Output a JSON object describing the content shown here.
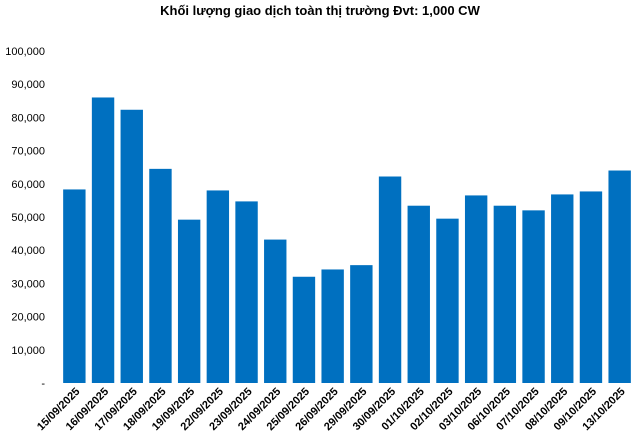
{
  "chart_data": {
    "type": "bar",
    "title": "Khối lượng giao dịch toàn thị trường Đvt: 1,000 CW",
    "xlabel": "",
    "ylabel": "",
    "ylim": [
      0,
      100000
    ],
    "y_ticks": [
      "-",
      "10,000",
      "20,000",
      "30,000",
      "40,000",
      "50,000",
      "60,000",
      "70,000",
      "80,000",
      "90,000",
      "100,000"
    ],
    "y_tick_values": [
      0,
      10000,
      20000,
      30000,
      40000,
      50000,
      60000,
      70000,
      80000,
      90000,
      100000
    ],
    "grid": false,
    "bar_color": "#0070C0",
    "categories": [
      "15/09/2025",
      "16/09/2025",
      "17/09/2025",
      "18/09/2025",
      "19/09/2025",
      "22/09/2025",
      "23/09/2025",
      "24/09/2025",
      "25/09/2025",
      "26/09/2025",
      "29/09/2025",
      "30/09/2025",
      "01/10/2025",
      "02/10/2025",
      "03/10/2025",
      "06/10/2025",
      "07/10/2025",
      "08/10/2025",
      "09/10/2025",
      "13/10/2025"
    ],
    "values": [
      58300,
      86000,
      82300,
      64500,
      49200,
      58000,
      54700,
      43200,
      32000,
      34200,
      35500,
      62200,
      53400,
      49500,
      56500,
      53400,
      52000,
      56800,
      57700,
      64000
    ]
  }
}
